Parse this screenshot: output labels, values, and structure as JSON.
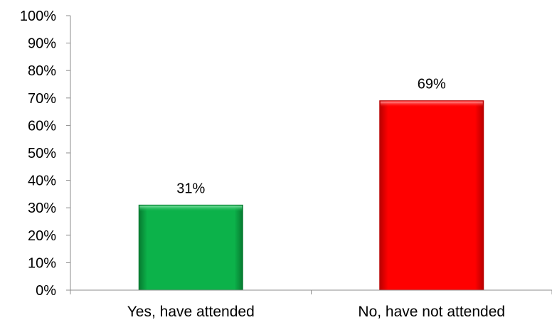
{
  "chart_data": {
    "type": "bar",
    "title": "",
    "xlabel": "",
    "ylabel": "",
    "ylim": [
      0,
      100
    ],
    "y_tick_step": 10,
    "y_tick_suffix": "%",
    "grid": false,
    "categories": [
      "Yes, have attended",
      "No, have not attended"
    ],
    "values": [
      31,
      69
    ],
    "data_labels": [
      "31%",
      "69%"
    ],
    "bar_colors": [
      "#0cb24a",
      "#ff0000"
    ],
    "bar_highlight_colors": [
      "#7fe0a3",
      "#ff9a9a"
    ],
    "bar_shadow_colors": [
      "#077a30",
      "#b80000"
    ]
  }
}
